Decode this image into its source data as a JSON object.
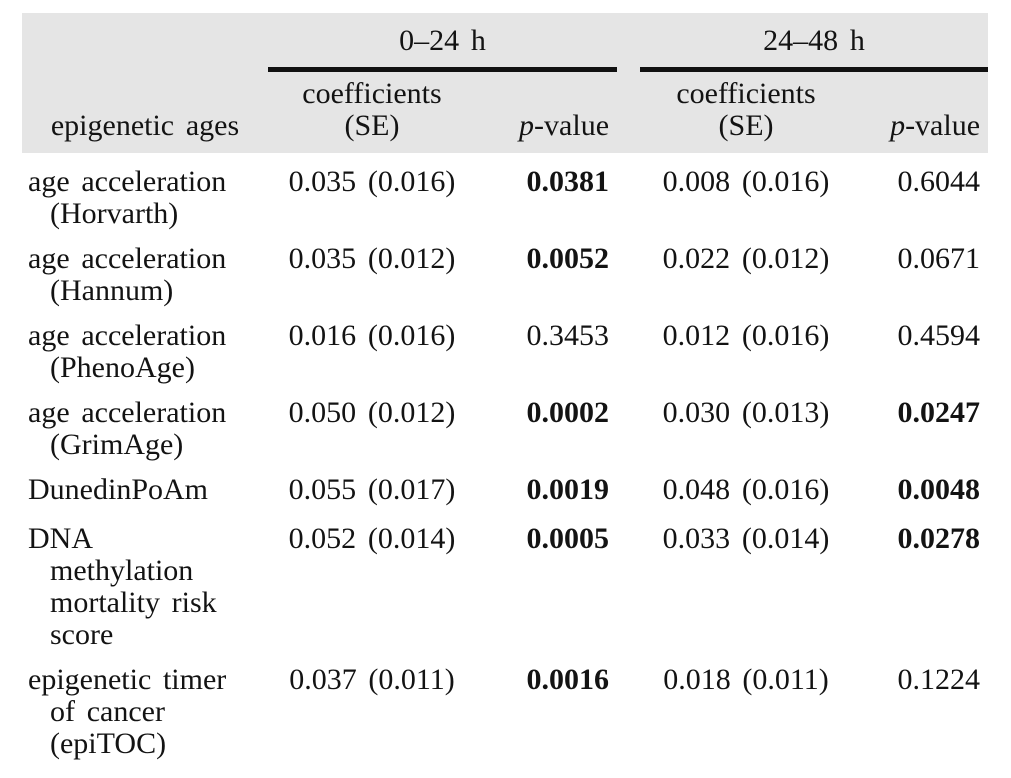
{
  "colors": {
    "header_bg": "#e5e5e5",
    "rule": "#111111",
    "text": "#131313"
  },
  "table": {
    "groups": [
      {
        "label": "0–24 h"
      },
      {
        "label": "24–48 h"
      }
    ],
    "col_headers": {
      "stub": "epigenetic ages",
      "coef": "coefficients\n(SE)",
      "p_lead": "p",
      "p_rest": "-value"
    },
    "rows": [
      {
        "label": "age acceleration\n(Horvarth)",
        "coef1": "0.035 (0.016)",
        "p1": "0.0381",
        "p1_bold": true,
        "coef2": "0.008 (0.016)",
        "p2": "0.6044",
        "p2_bold": false
      },
      {
        "label": "age acceleration\n(Hannum)",
        "coef1": "0.035 (0.012)",
        "p1": "0.0052",
        "p1_bold": true,
        "coef2": "0.022 (0.012)",
        "p2": "0.0671",
        "p2_bold": false
      },
      {
        "label": "age acceleration\n(PhenoAge)",
        "coef1": "0.016 (0.016)",
        "p1": "0.3453",
        "p1_bold": false,
        "coef2": "0.012 (0.016)",
        "p2": "0.4594",
        "p2_bold": false
      },
      {
        "label": "age acceleration\n(GrimAge)",
        "coef1": "0.050 (0.012)",
        "p1": "0.0002",
        "p1_bold": true,
        "coef2": "0.030 (0.013)",
        "p2": "0.0247",
        "p2_bold": true
      },
      {
        "label": "DunedinPoAm",
        "coef1": "0.055 (0.017)",
        "p1": "0.0019",
        "p1_bold": true,
        "coef2": "0.048 (0.016)",
        "p2": "0.0048",
        "p2_bold": true
      },
      {
        "label": "DNA\nmethylation\nmortality risk\nscore",
        "coef1": "0.052 (0.014)",
        "p1": "0.0005",
        "p1_bold": true,
        "coef2": "0.033 (0.014)",
        "p2": "0.0278",
        "p2_bold": true
      },
      {
        "label": "epigenetic timer\nof cancer\n(epiTOC)",
        "coef1": "0.037 (0.011)",
        "p1": "0.0016",
        "p1_bold": true,
        "coef2": "0.018 (0.011)",
        "p2": "0.1224",
        "p2_bold": false
      }
    ]
  }
}
